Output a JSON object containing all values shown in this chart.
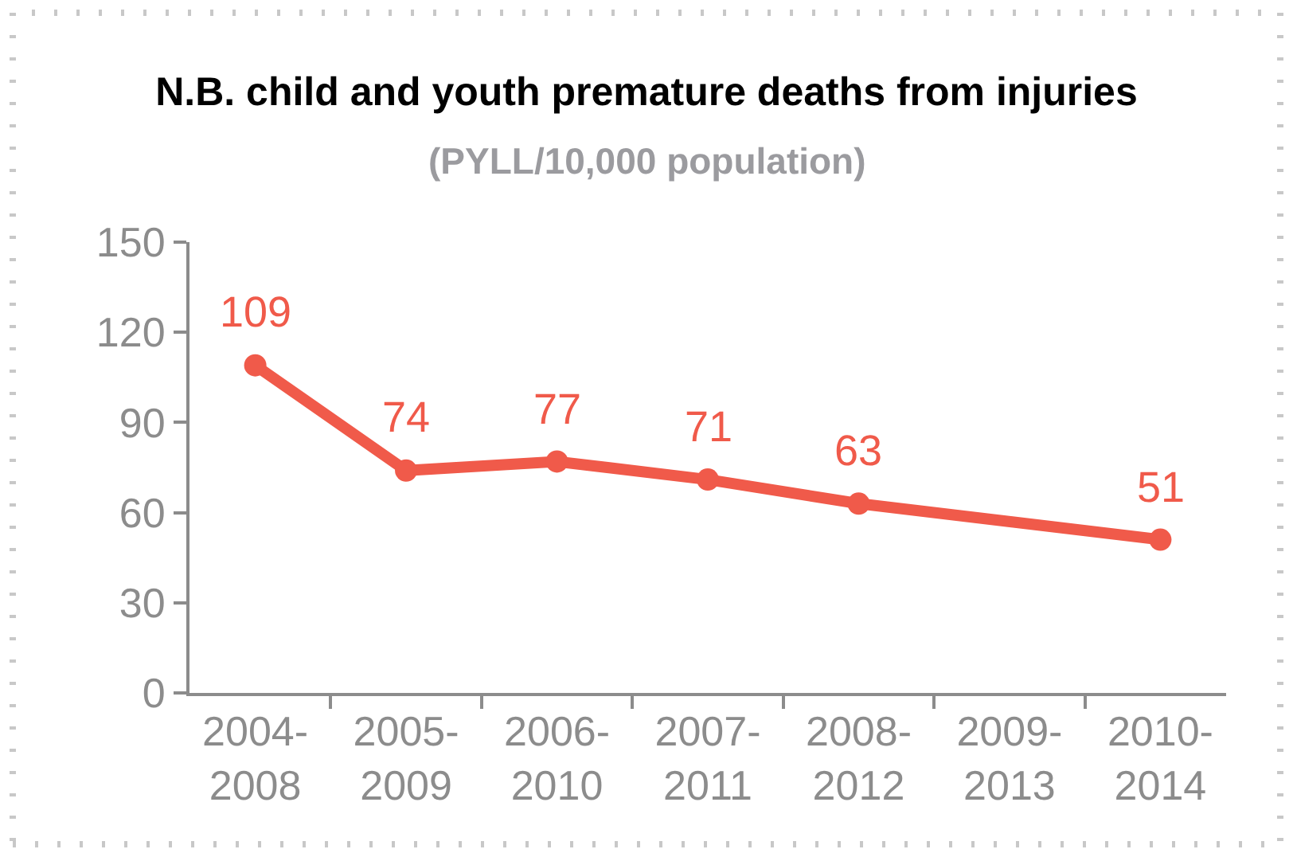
{
  "chart_data": {
    "type": "line",
    "title": "N.B. child and youth premature deaths from injuries",
    "subtitle": "(PYLL/10,000 population)",
    "categories": [
      "2004-\n2008",
      "2005-\n2009",
      "2006-\n2010",
      "2007-\n2011",
      "2008-\n2012",
      "2009-\n2013",
      "2010-\n2014"
    ],
    "series": [
      {
        "color": "#f05a4a",
        "values": [
          109,
          74,
          77,
          71,
          63,
          null,
          51
        ]
      }
    ],
    "ylim": [
      0,
      150
    ],
    "yticks": [
      0,
      30,
      60,
      90,
      120,
      150
    ],
    "marker": "circle",
    "line_style": "solid",
    "data_labels": true
  }
}
